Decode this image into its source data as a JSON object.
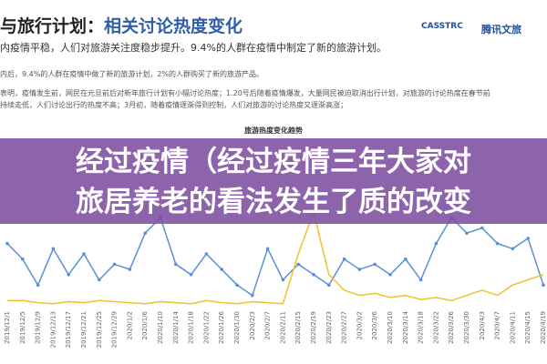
{
  "header": {
    "title_black": "与旅行计划：",
    "title_blue": "相关讨论热度变化",
    "logos": [
      "CASSTRC",
      "腾讯文旅"
    ]
  },
  "paragraphs": [
    "内疫情平稳，人们对旅游关注度稳步提升。9.4%的人群在疫情中制定了新的旅游计划。",
    "内后，9.4%的人群在疫情中做了新的旅游计划，2%的人群购买了新的旅游产品。",
    "表明，疫情发生前，网民在元旦前后对新年旅行计划有小幅讨论热度；1.20号后随着疫情爆发，大量网民被迫取消出行计划，对旅游的讨论热度在春节前",
    "持续走低，人们讨论出行的热度不高；3月初，随着疫情逐渐得到控制，人们对旅游的讨论热度又逐渐高涨；"
  ],
  "banner": {
    "lines": [
      "经过疫情（经过疫情三年大家对",
      "旅居养老的看法发生了质的改变"
    ]
  },
  "chart_data": {
    "type": "line",
    "title": "旅游热度变化趋势",
    "categories": [
      "2019/12/1",
      "2019/12/5",
      "2019/12/9",
      "2019/12/13",
      "2019/12/17",
      "2019/12/21",
      "2019/12/25",
      "2019/12/29",
      "2020/1/2",
      "2020/1/6",
      "2020/1/10",
      "2020/1/14",
      "2020/1/18",
      "2020/1/22",
      "2020/1/26",
      "2020/1/30",
      "2020/2/3",
      "2020/2/7",
      "2020/2/11",
      "2020/2/15",
      "2020/2/19",
      "2020/2/23",
      "2020/2/27",
      "2020/3/2",
      "2020/3/6",
      "2020/3/10",
      "2020/3/14",
      "2020/3/18",
      "2020/3/22",
      "2020/3/26",
      "2020/3/30",
      "2020/4/3",
      "2020/4/7",
      "2020/4/11",
      "2020/4/15",
      "2020/4/19"
    ],
    "series": [
      {
        "color": "#5b8fd6",
        "values": [
          60,
          45,
          20,
          55,
          30,
          50,
          25,
          40,
          35,
          70,
          85,
          40,
          30,
          50,
          35,
          20,
          10,
          55,
          25,
          40,
          30,
          20,
          45,
          35,
          40,
          30,
          45,
          25,
          60,
          85,
          70,
          75,
          60,
          55,
          65,
          20
        ]
      },
      {
        "color": "#f2c12e",
        "values": [
          5,
          5,
          3,
          2,
          4,
          3,
          5,
          4,
          3,
          2,
          4,
          3,
          2,
          5,
          3,
          2,
          4,
          3,
          2,
          50,
          90,
          30,
          15,
          10,
          12,
          8,
          10,
          6,
          8,
          5,
          10,
          15,
          10,
          20,
          25,
          30
        ]
      }
    ],
    "ylim": [
      0,
      100
    ]
  }
}
